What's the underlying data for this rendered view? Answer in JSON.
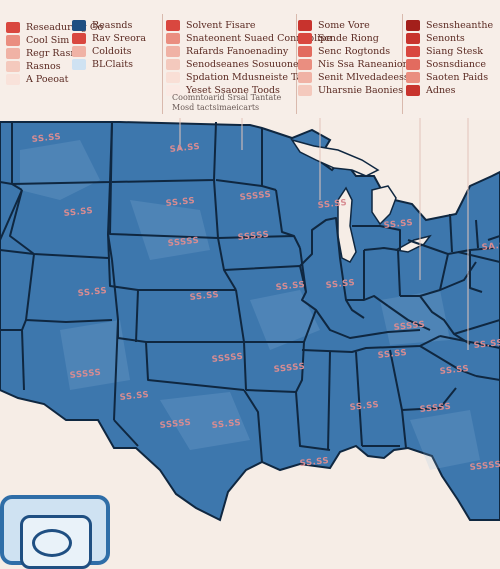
{
  "legend": {
    "columns": [
      {
        "items": [
          {
            "label": "Reseaduring Go",
            "color": "#d9473f"
          },
          {
            "label": "Cool Sim",
            "color": "#ea8e80"
          },
          {
            "label": "Regr Rasr",
            "color": "#f0b2a5"
          },
          {
            "label": "Rasnos",
            "color": "#f4c9bd"
          },
          {
            "label": "A Poeoat",
            "color": "#f9e2da"
          }
        ]
      },
      {
        "items": [
          {
            "label": "Reasnds",
            "color": "#1f4f82"
          },
          {
            "label": "Rav Sreora",
            "color": "#d9473f"
          },
          {
            "label": "Coldoits",
            "color": "#f0b2a5"
          },
          {
            "label": "BLClaits",
            "color": "#cfe2f2"
          }
        ]
      },
      {
        "items": [
          {
            "label": "Solvent Fisare",
            "color": "#d9473f"
          },
          {
            "label": "Snateonent Suaed Conneplipe",
            "color": "#ea8e80"
          },
          {
            "label": "Rafards Fanoenadiny",
            "color": "#f0b2a5"
          },
          {
            "label": "Senodseanes Sosuuone",
            "color": "#f4c9bd"
          },
          {
            "label": "Spdation Mdusneiste Tars",
            "color": "#f9dfd6"
          },
          {
            "label": "Yeset Ssaone Toods",
            "color": "#fbeae4"
          }
        ]
      },
      {
        "items": [
          {
            "label": "Some Vore",
            "color": "#c8332d"
          },
          {
            "label": "Scnde Riong",
            "color": "#d9473f"
          },
          {
            "label": "Senc Rogtonds",
            "color": "#e26b5f"
          },
          {
            "label": "Nis Ssa Raneaniones",
            "color": "#ea8e80"
          },
          {
            "label": "Senit Mlvedadeess",
            "color": "#f0b2a5"
          },
          {
            "label": "Uharsnie Baonies",
            "color": "#f4c9bd"
          }
        ]
      },
      {
        "items": [
          {
            "label": "Sesnsheanthe",
            "color": "#a31f1b"
          },
          {
            "label": "Senonts",
            "color": "#c8332d"
          },
          {
            "label": "Siang Stesk",
            "color": "#d9473f"
          },
          {
            "label": "Sosnsdiance",
            "color": "#e26b5f"
          },
          {
            "label": "Saoten Paids",
            "color": "#ea8e80"
          },
          {
            "label": "Adnes",
            "color": "#c8332d"
          }
        ]
      }
    ],
    "note": [
      "Coomntoarid Srsal Tantate",
      "Mosd tactsimaeicarts"
    ]
  },
  "map": {
    "ocean_color": "#f6ede6",
    "state_color": "#3d77ad",
    "border_color": "#0f2740",
    "labels": [
      "SS.SS",
      "SA.SS",
      "SSSSS",
      "SS.SS",
      "SS.SS",
      "SS.SS",
      "SS.SS",
      "SA.SS",
      "SS.SS",
      "SSSSS",
      "SSSSS",
      "SS.SS",
      "SSSSS",
      "SS.SS",
      "SS.SS",
      "SS.SS",
      "SSSSS",
      "SSSSS",
      "SSSSS",
      "SS.SS",
      "SS.SS",
      "SSSSS",
      "SS.SS",
      "SS.SS",
      "SSSSS",
      "SS.SS",
      "SSSSS",
      "SS.SS"
    ]
  }
}
